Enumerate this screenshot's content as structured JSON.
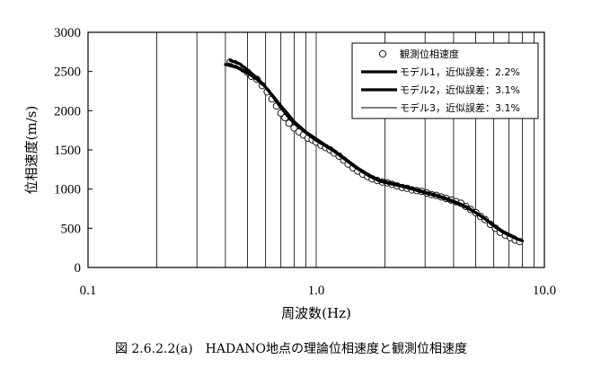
{
  "chart_data": {
    "type": "line",
    "title": "",
    "xlabel": "周波数(Hz)",
    "ylabel": "位相速度(m/s)",
    "xscale": "log",
    "xlim": [
      0.1,
      10.0
    ],
    "ylim": [
      0,
      3000
    ],
    "x_tick_labels": [
      "0.1",
      "1.0",
      "10.0"
    ],
    "y_ticks": [
      0,
      500,
      1000,
      1500,
      2000,
      2500,
      3000
    ],
    "grid": {
      "vertical": true,
      "horizontal": false
    },
    "legend_position": "top-right",
    "series": [
      {
        "name": "観測位相速度",
        "style": "marker-circle",
        "color": "#000000",
        "x": [
          0.42,
          0.44,
          0.46,
          0.48,
          0.5,
          0.52,
          0.55,
          0.58,
          0.61,
          0.64,
          0.67,
          0.7,
          0.73,
          0.76,
          0.8,
          0.84,
          0.88,
          0.92,
          0.96,
          1.0,
          1.05,
          1.1,
          1.15,
          1.2,
          1.26,
          1.32,
          1.38,
          1.45,
          1.52,
          1.6,
          1.68,
          1.76,
          1.85,
          1.95,
          2.05,
          2.15,
          2.26,
          2.38,
          2.5,
          2.63,
          2.76,
          2.9,
          3.05,
          3.2,
          3.36,
          3.53,
          3.71,
          3.9,
          4.1,
          4.3,
          4.52,
          4.75,
          5.0,
          5.25,
          5.5,
          5.8,
          6.1,
          6.4,
          6.75,
          7.1,
          7.45,
          7.8
        ],
        "y": [
          2620,
          2600,
          2570,
          2530,
          2490,
          2440,
          2400,
          2320,
          2240,
          2150,
          2060,
          1970,
          1910,
          1840,
          1780,
          1730,
          1690,
          1650,
          1630,
          1600,
          1560,
          1530,
          1500,
          1460,
          1420,
          1370,
          1320,
          1270,
          1230,
          1190,
          1160,
          1130,
          1110,
          1090,
          1080,
          1060,
          1040,
          1020,
          1010,
          990,
          980,
          970,
          950,
          930,
          920,
          900,
          880,
          860,
          840,
          820,
          780,
          740,
          700,
          650,
          610,
          550,
          500,
          450,
          410,
          380,
          350,
          330
        ]
      },
      {
        "name": "モデル1，近似誤差：2.2%",
        "style": "line-thick",
        "color": "#000000",
        "x": [
          0.4,
          0.45,
          0.5,
          0.55,
          0.6,
          0.65,
          0.7,
          0.75,
          0.8,
          0.9,
          1.0,
          1.1,
          1.2,
          1.35,
          1.5,
          1.7,
          1.9,
          2.1,
          2.4,
          2.7,
          3.0,
          3.4,
          3.8,
          4.2,
          4.6,
          5.0,
          5.5,
          6.0,
          6.5,
          7.0,
          7.5,
          8.0
        ],
        "y": [
          2590,
          2550,
          2480,
          2400,
          2300,
          2180,
          2060,
          1960,
          1860,
          1730,
          1640,
          1560,
          1490,
          1380,
          1280,
          1180,
          1110,
          1080,
          1040,
          1000,
          960,
          920,
          870,
          820,
          770,
          700,
          620,
          530,
          460,
          410,
          370,
          340
        ]
      },
      {
        "name": "モデル2，近似誤差：3.1%",
        "style": "line-thick",
        "color": "#000000",
        "x": [
          0.42,
          0.46,
          0.5,
          0.55,
          0.6,
          0.65,
          0.7,
          0.75,
          0.8,
          0.9,
          1.0,
          1.1,
          1.2,
          1.35,
          1.5,
          1.7,
          1.9,
          2.1,
          2.4,
          2.7,
          3.0,
          3.4,
          3.8,
          4.2,
          4.6,
          5.0,
          5.5,
          6.0,
          6.5,
          7.0,
          7.5
        ],
        "y": [
          2640,
          2600,
          2520,
          2420,
          2300,
          2170,
          2040,
          1930,
          1840,
          1720,
          1620,
          1550,
          1480,
          1370,
          1270,
          1170,
          1100,
          1070,
          1030,
          990,
          950,
          910,
          860,
          810,
          760,
          700,
          620,
          540,
          470,
          420,
          380
        ]
      },
      {
        "name": "モデル3，近似誤差：3.1%",
        "style": "line-thin",
        "color": "#000000",
        "x": [
          0.41,
          0.45,
          0.5,
          0.55,
          0.6,
          0.65,
          0.7,
          0.75,
          0.8,
          0.9,
          1.0,
          1.1,
          1.2,
          1.35,
          1.5,
          1.7,
          1.9,
          2.1,
          2.4,
          2.7,
          3.0,
          3.4,
          3.8,
          4.2,
          4.6,
          5.0,
          5.5,
          6.0,
          6.5,
          7.0,
          7.5,
          7.8
        ],
        "y": [
          2610,
          2570,
          2500,
          2410,
          2300,
          2180,
          2060,
          1950,
          1850,
          1730,
          1630,
          1560,
          1490,
          1380,
          1280,
          1180,
          1110,
          1080,
          1040,
          1000,
          960,
          920,
          870,
          820,
          770,
          710,
          630,
          540,
          470,
          420,
          380,
          350
        ]
      }
    ],
    "annotations": [
      {
        "text": "図 2.6.2.2(a)　HADANO地点の理論位相速度と観測位相速度",
        "position": "bottom-caption"
      }
    ]
  }
}
